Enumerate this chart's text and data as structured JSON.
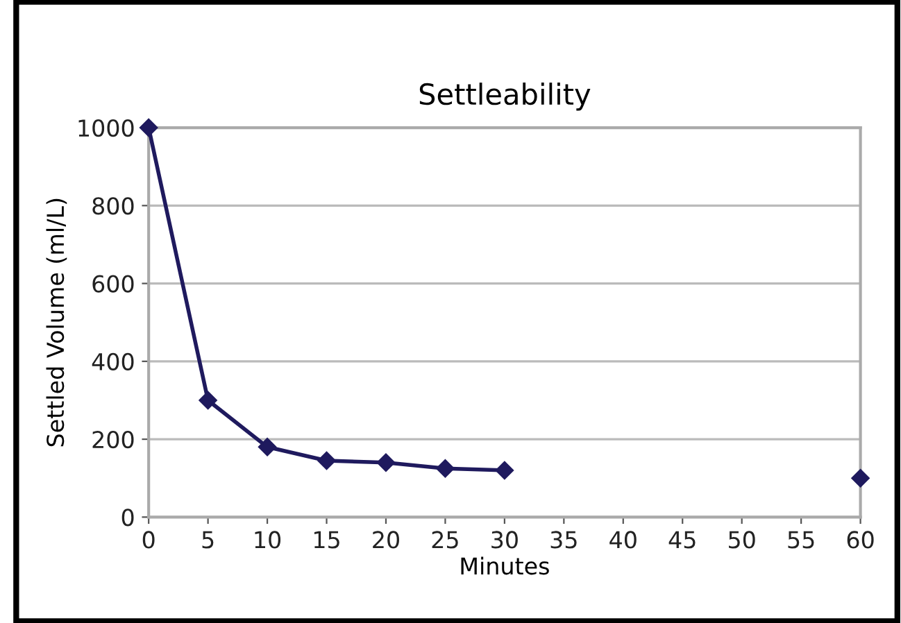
{
  "chart_data": {
    "type": "line",
    "title": "Settleability",
    "xlabel": "Minutes",
    "ylabel": "Settled Volume (ml/L)",
    "x": [
      0,
      5,
      10,
      15,
      20,
      25,
      30,
      35,
      40,
      45,
      50,
      55,
      60
    ],
    "series": [
      {
        "color": "#1f1a5e",
        "values": [
          1000,
          300,
          180,
          145,
          140,
          125,
          120,
          null,
          null,
          null,
          null,
          null,
          100
        ]
      }
    ],
    "xlim": [
      0,
      60
    ],
    "xticks": [
      0,
      5,
      10,
      15,
      20,
      25,
      30,
      35,
      40,
      45,
      50,
      55,
      60
    ],
    "ylim": [
      0,
      1000
    ],
    "yticks": [
      0,
      200,
      400,
      600,
      800,
      1000
    ],
    "grid": "y",
    "marker": "diamond",
    "line_style": "solid"
  }
}
